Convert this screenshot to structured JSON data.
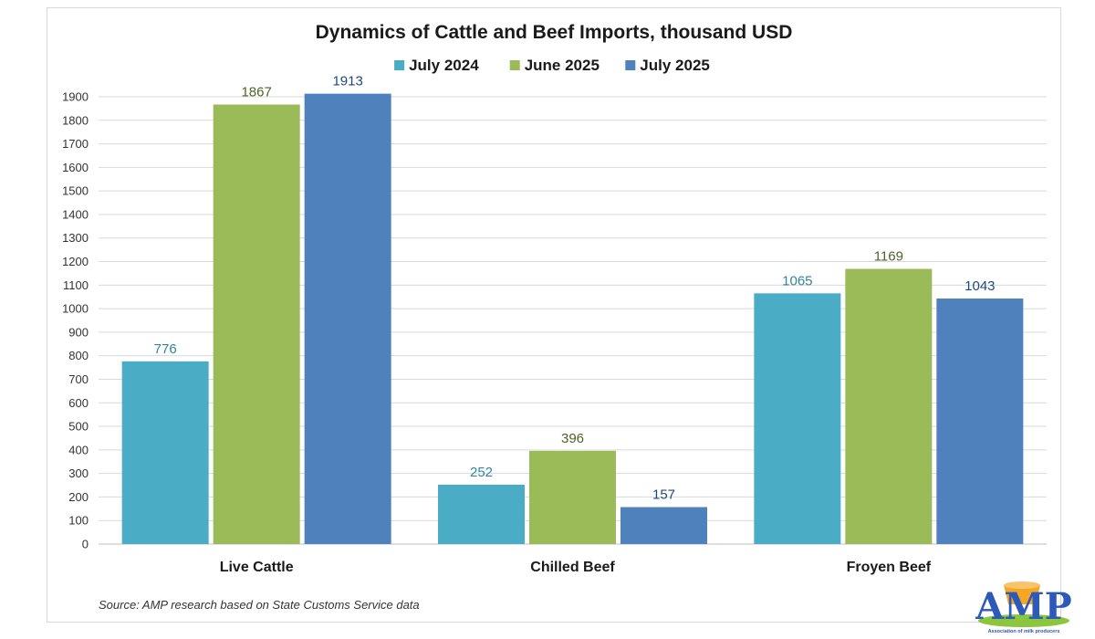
{
  "chart_data": {
    "type": "bar",
    "title": "Dynamics of Cattle and Beef Imports, thousand USD",
    "categories": [
      "Live Cattle",
      "Chilled Beef",
      "Froyen Beef"
    ],
    "series": [
      {
        "name": "July 2024",
        "color": "#4bacc6",
        "label_color": "#31859c",
        "values": [
          776,
          252,
          1065
        ]
      },
      {
        "name": "June 2025",
        "color": "#9bbb59",
        "label_color": "#4f6228",
        "values": [
          1867,
          396,
          1169
        ]
      },
      {
        "name": "July 2025",
        "color": "#4f81bd",
        "label_color": "#1f497d",
        "values": [
          1913,
          157,
          1043
        ]
      }
    ],
    "ylim": [
      0,
      1900
    ],
    "ytick_step": 100,
    "grid": true,
    "legend_position": "top",
    "xlabel": "",
    "ylabel": ""
  },
  "source_note": "Source: AMP research based on State Customs Service data",
  "logo": {
    "text": "AMP",
    "subtitle": "Association of milk producers"
  }
}
